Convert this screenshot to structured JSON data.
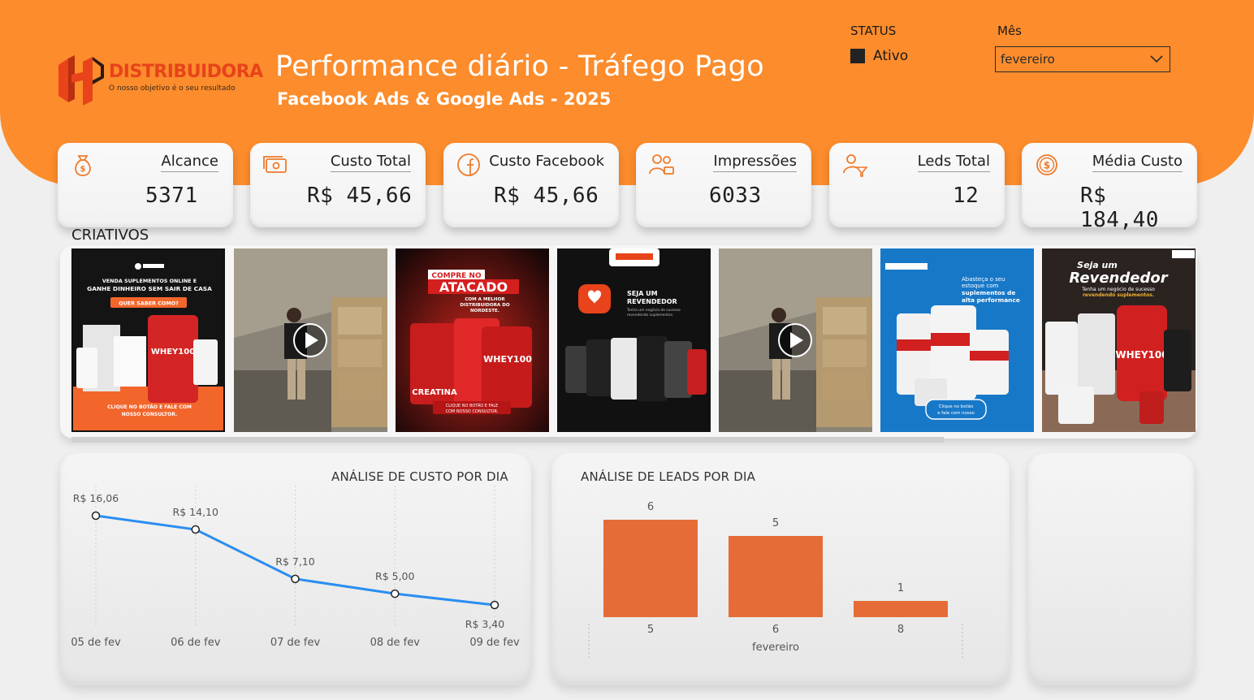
{
  "colors": {
    "brand_orange": "#fc8c2c",
    "logo_red": "#e8431a",
    "line_blue": "#2a8ef0",
    "bar_orange": "#e56c36",
    "background": "#efefef"
  },
  "header": {
    "logo_word": "DISTRIBUIDORA",
    "logo_tagline": "O nosso objetivo é o seu resultado",
    "title": "Performance diário - Tráfego Pago",
    "subtitle": "Facebook Ads & Google Ads - 2025"
  },
  "filters": {
    "status_label": "STATUS",
    "status_option": "Ativo",
    "month_label": "Mês",
    "month_value": "fevereiro"
  },
  "kpis": [
    {
      "label": "Alcance",
      "value": "5371",
      "icon": "money-bag-icon"
    },
    {
      "label": "Custo Total",
      "value": "R$ 45,66",
      "icon": "cash-icon"
    },
    {
      "label": "Custo Facebook",
      "value": "R$ 45,66",
      "icon": "facebook-icon"
    },
    {
      "label": "Impressões",
      "value": "6033",
      "icon": "users-icon"
    },
    {
      "label": "Leds Total",
      "value": "12",
      "icon": "user-filter-icon"
    },
    {
      "label": "Média Custo",
      "value": "R$ 184,40",
      "icon": "dollar-coin-icon"
    }
  ],
  "creatives": {
    "title": "CRIATIVOS",
    "items": [
      {
        "kind": "image",
        "headline": "VENDA SUPLEMENTOS ONLINE E GANHE DINHEIRO SEM SAIR DE CASA",
        "cta": "QUER SABER COMO?",
        "footer": "CLIQUE NO BOTÃO E FALE COM NOSSO CONSULTOR."
      },
      {
        "kind": "video"
      },
      {
        "kind": "image",
        "headline": "COMPRE NO",
        "highlight": "ATACADO",
        "sub": "COM A MELHOR DISTRIBUIDORA DO NORDESTE.",
        "footer": "CLIQUE NO BOTÃO E FALE COM NOSSO CONSULTOR."
      },
      {
        "kind": "image",
        "headline": "SEJA UM REVENDEDOR",
        "sub": "Tenha um negócio de sucesso revendendo suplementos."
      },
      {
        "kind": "video"
      },
      {
        "kind": "image",
        "headline": "Abasteça o seu estoque com suplementos de alta performance",
        "cta": "Clique no botão e fale com nosso consultor."
      },
      {
        "kind": "image",
        "headline": "Seja um Revendedor",
        "sub": "Tenha um negócio de sucesso revendendo suplementos."
      }
    ]
  },
  "chart_data": [
    {
      "type": "line",
      "title": "ANÁLISE DE CUSTO POR DIA",
      "categories": [
        "05 de fev",
        "06 de fev",
        "07 de fev",
        "08 de fev",
        "09 de fev"
      ],
      "values": [
        16.06,
        14.1,
        7.1,
        5.0,
        3.4
      ],
      "labels": [
        "R$ 16,06",
        "R$ 14,10",
        "R$ 7,10",
        "R$ 5,00",
        "R$ 3,40"
      ],
      "color": "#2a8ef0"
    },
    {
      "type": "bar",
      "title": "ANÁLISE DE LEADS POR DIA",
      "categories": [
        "5",
        "6",
        "8"
      ],
      "values": [
        6,
        5,
        1
      ],
      "xlabel": "fevereiro",
      "color": "#e56c36"
    }
  ]
}
